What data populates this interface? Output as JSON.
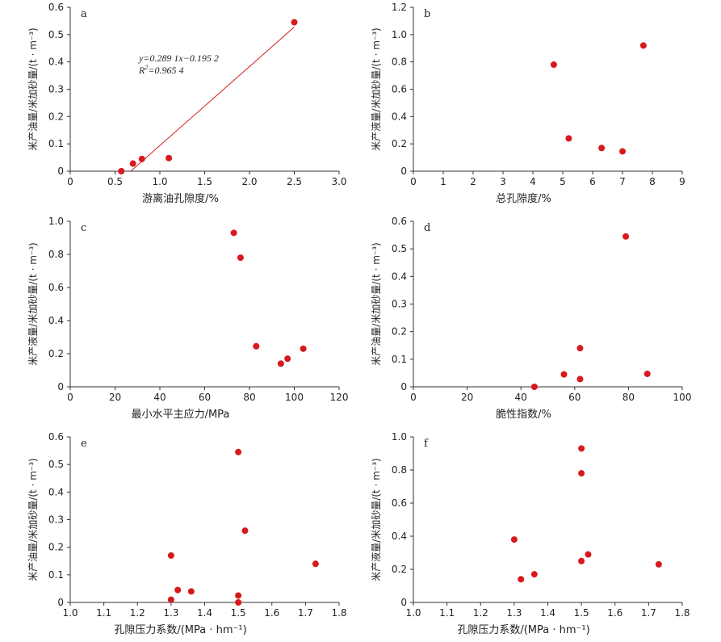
{
  "chart_data": [
    {
      "panel": "a",
      "type": "scatter",
      "xlabel": "游离油孔隙度/%",
      "ylabel": "米产油量/米加砂量/(t · m⁻³)",
      "xlim": [
        0,
        3.0
      ],
      "ylim": [
        0,
        0.6
      ],
      "xticks": [
        "0",
        "0.5",
        "1.0",
        "1.5",
        "2.0",
        "2.5",
        "3.0"
      ],
      "yticks": [
        "0",
        "0.1",
        "0.2",
        "0.3",
        "0.4",
        "0.5",
        "0.6"
      ],
      "points": [
        [
          0.57,
          0.0
        ],
        [
          0.7,
          0.028
        ],
        [
          0.8,
          0.045
        ],
        [
          1.1,
          0.048
        ],
        [
          2.5,
          0.545
        ]
      ],
      "trendline": {
        "slope": 0.2891,
        "intercept": -0.1952,
        "x_range": [
          0.68,
          2.5
        ]
      },
      "equation": "y=0.289 1x−0.195 2",
      "r2_prefix": "R",
      "r2_value": "=0.965 4",
      "point_color": "#d7191c",
      "line_color": "#d7191c"
    },
    {
      "panel": "b",
      "type": "scatter",
      "xlabel": "总孔隙度/%",
      "ylabel": "米产液量/米加砂量/(t · m⁻³)",
      "xlim": [
        0,
        9
      ],
      "ylim": [
        0,
        1.2
      ],
      "xticks": [
        "0",
        "1",
        "2",
        "3",
        "4",
        "5",
        "6",
        "7",
        "8",
        "9"
      ],
      "yticks": [
        "0",
        "0.2",
        "0.4",
        "0.6",
        "0.8",
        "1.0",
        "1.2"
      ],
      "points": [
        [
          4.7,
          0.78
        ],
        [
          5.2,
          0.24
        ],
        [
          6.3,
          0.17
        ],
        [
          7.0,
          0.145
        ],
        [
          7.7,
          0.92
        ]
      ],
      "point_color": "#d7191c"
    },
    {
      "panel": "c",
      "type": "scatter",
      "xlabel": "最小水平主应力/MPa",
      "ylabel": "米产液量/米加砂量/(t · m⁻³)",
      "xlim": [
        0,
        120
      ],
      "ylim": [
        0,
        1.0
      ],
      "xticks": [
        "0",
        "20",
        "40",
        "60",
        "80",
        "100",
        "120"
      ],
      "yticks": [
        "0",
        "0.2",
        "0.4",
        "0.6",
        "0.8",
        "1.0"
      ],
      "points": [
        [
          73,
          0.93
        ],
        [
          76,
          0.78
        ],
        [
          83,
          0.245
        ],
        [
          94,
          0.14
        ],
        [
          97,
          0.17
        ],
        [
          104,
          0.23
        ]
      ],
      "point_color": "#d7191c"
    },
    {
      "panel": "d",
      "type": "scatter",
      "xlabel": "脆性指数/%",
      "ylabel": "米产油量/米加砂量/(t · m⁻³)",
      "xlim": [
        0,
        100
      ],
      "ylim": [
        0,
        0.6
      ],
      "xticks": [
        "0",
        "20",
        "40",
        "60",
        "80",
        "100"
      ],
      "yticks": [
        "0",
        "0.1",
        "0.2",
        "0.3",
        "0.4",
        "0.5",
        "0.6"
      ],
      "points": [
        [
          45,
          0.0
        ],
        [
          56,
          0.045
        ],
        [
          62,
          0.028
        ],
        [
          62,
          0.14
        ],
        [
          79,
          0.545
        ],
        [
          87,
          0.047
        ]
      ],
      "point_color": "#d7191c"
    },
    {
      "panel": "e",
      "type": "scatter",
      "xlabel": "孔隙压力系数/(MPa · hm⁻¹)",
      "ylabel": "米产油量/米加砂量/(t · m⁻³)",
      "xlim": [
        1.0,
        1.8
      ],
      "ylim": [
        0,
        0.6
      ],
      "xticks": [
        "1.0",
        "1.1",
        "1.2",
        "1.3",
        "1.4",
        "1.5",
        "1.6",
        "1.7",
        "1.8"
      ],
      "yticks": [
        "0",
        "0.1",
        "0.2",
        "0.3",
        "0.4",
        "0.5",
        "0.6"
      ],
      "points": [
        [
          1.3,
          0.17
        ],
        [
          1.3,
          0.01
        ],
        [
          1.32,
          0.045
        ],
        [
          1.36,
          0.04
        ],
        [
          1.5,
          0.545
        ],
        [
          1.5,
          0.025
        ],
        [
          1.5,
          0.0
        ],
        [
          1.52,
          0.26
        ],
        [
          1.73,
          0.14
        ]
      ],
      "point_color": "#d7191c"
    },
    {
      "panel": "f",
      "type": "scatter",
      "xlabel": "孔隙压力系数/(MPa · hm⁻¹)",
      "ylabel": "米产液量/米加砂量/(t · m⁻³)",
      "xlim": [
        1.0,
        1.8
      ],
      "ylim": [
        0,
        1.0
      ],
      "xticks": [
        "1.0",
        "1.1",
        "1.2",
        "1.3",
        "1.4",
        "1.5",
        "1.6",
        "1.7",
        "1.8"
      ],
      "yticks": [
        "0",
        "0.2",
        "0.4",
        "0.6",
        "0.8",
        "1.0"
      ],
      "points": [
        [
          1.3,
          0.38
        ],
        [
          1.32,
          0.14
        ],
        [
          1.36,
          0.17
        ],
        [
          1.5,
          0.93
        ],
        [
          1.5,
          0.78
        ],
        [
          1.5,
          0.25
        ],
        [
          1.52,
          0.29
        ],
        [
          1.73,
          0.23
        ]
      ],
      "point_color": "#d7191c"
    }
  ]
}
